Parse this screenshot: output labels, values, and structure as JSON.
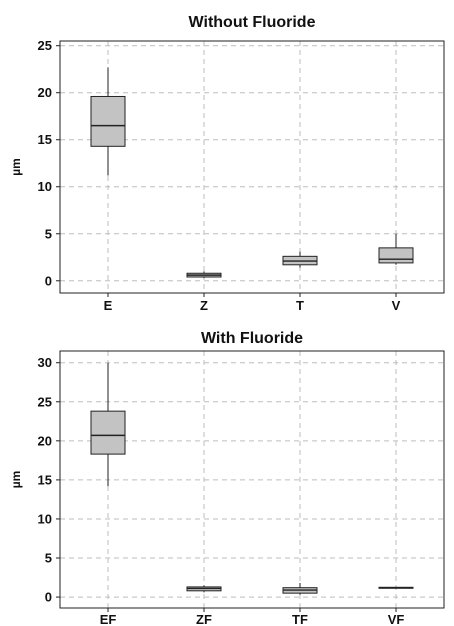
{
  "colors": {
    "box_fill": "#c3c3c3",
    "grid": "#bdbdbd",
    "stroke": "#222222"
  },
  "chart_data": [
    {
      "type": "box",
      "title": "Without Fluoride",
      "xlabel": "",
      "ylabel": "µm",
      "ylim": [
        -1.3,
        25.5
      ],
      "yticks": [
        0,
        5,
        10,
        15,
        20,
        25
      ],
      "grid": true,
      "categories": [
        "E",
        "Z",
        "T",
        "V"
      ],
      "boxes": [
        {
          "min": 11.2,
          "q1": 14.3,
          "median": 16.5,
          "q3": 19.6,
          "max": 22.7
        },
        {
          "min": 0.3,
          "q1": 0.4,
          "median": 0.6,
          "q3": 0.8,
          "max": 1.0
        },
        {
          "min": 1.4,
          "q1": 1.7,
          "median": 2.1,
          "q3": 2.6,
          "max": 3.1
        },
        {
          "min": 1.7,
          "q1": 1.9,
          "median": 2.3,
          "q3": 3.5,
          "max": 5.0
        }
      ]
    },
    {
      "type": "box",
      "title": "With Fluoride",
      "xlabel": "",
      "ylabel": "µm",
      "ylim": [
        -1.4,
        31.5
      ],
      "yticks": [
        0,
        5,
        10,
        15,
        20,
        25,
        30
      ],
      "grid": true,
      "categories": [
        "EF",
        "ZF",
        "TF",
        "VF"
      ],
      "boxes": [
        {
          "min": 14.2,
          "q1": 18.3,
          "median": 20.7,
          "q3": 23.8,
          "max": 30.0
        },
        {
          "min": 0.6,
          "q1": 0.8,
          "median": 1.1,
          "q3": 1.3,
          "max": 1.5
        },
        {
          "min": 0.3,
          "q1": 0.5,
          "median": 0.9,
          "q3": 1.2,
          "max": 1.8
        },
        {
          "min": 1.1,
          "q1": 1.15,
          "median": 1.2,
          "q3": 1.25,
          "max": 1.3
        }
      ]
    }
  ]
}
